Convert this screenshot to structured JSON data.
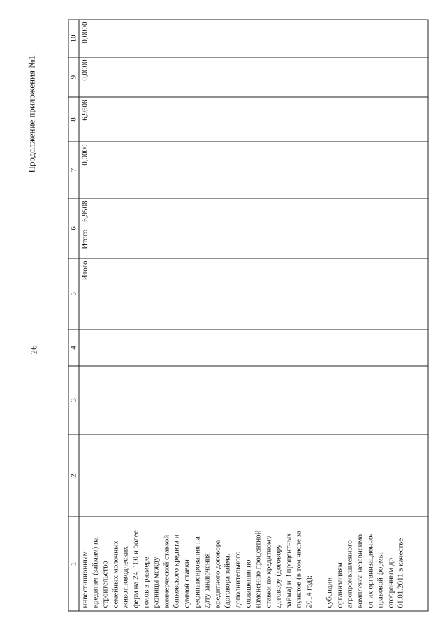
{
  "page_number": "26",
  "continuation_title": "Продолжение приложения №1",
  "table": {
    "headers": [
      "1",
      "2",
      "3",
      "4",
      "5",
      "6",
      "7",
      "8",
      "9",
      "10"
    ],
    "row": {
      "col5": "Итого",
      "col6": "Итого",
      "col7": "6,9508",
      "col8": "0,0000",
      "col9": "6,9508",
      "col10": "0,0000",
      "col11": "0,0000"
    },
    "description_lines_a": [
      "инвестиционным",
      "кредитам (займам) на",
      "строительство",
      "семейных молочных",
      "животноводческих",
      "ферм на 24, 100 и более",
      "голов в размере",
      "разницы между",
      "коммерческой ставкой",
      "банковского кредита и",
      "суммой ставки",
      "рефинансирования на",
      "дату заключения",
      "кредитного договора",
      "(договора займа,",
      "дополнительного",
      "соглашения по",
      "изменению процентной",
      "ставки по кредитному",
      "договору (договору",
      "займа) и 3 процентных",
      "пунктов (в том числе за",
      "2014 год);"
    ],
    "description_lines_b": [
      "субсидии",
      "организациям",
      "агропромышленного",
      "комплекса независимо",
      "от их организационно-",
      "правовой формы,",
      "отобранным до",
      "01.01.2011 в качестве"
    ]
  }
}
